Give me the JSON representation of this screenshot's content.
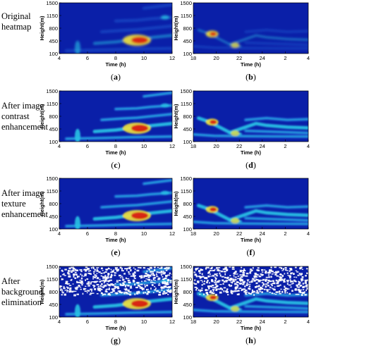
{
  "row_labels": [
    [
      "Original",
      "heatmap"
    ],
    [
      "After image",
      "contrast",
      "enhancement"
    ],
    [
      "After image",
      "texture",
      "enhancement"
    ],
    [
      "After",
      "background",
      "elimination"
    ]
  ],
  "chart_data": [
    {
      "type": "heatmap",
      "id": "a",
      "caption_letter": "a",
      "stage": "original",
      "xlabel": "Time (h)",
      "ylabel": "Height(m)",
      "xticks": [
        "4",
        "6",
        "8",
        "10",
        "12"
      ],
      "yticks": [
        "1500",
        "1150",
        "800",
        "450",
        "100"
      ],
      "xlim": [
        4,
        12
      ],
      "ylim": [
        100,
        1500
      ],
      "max_intensity_at": {
        "time": 10,
        "height": 450
      }
    },
    {
      "type": "heatmap",
      "id": "b",
      "caption_letter": "b",
      "stage": "original",
      "xlabel": "Time (h)",
      "ylabel": "Height(m)",
      "xticks": [
        "18",
        "20",
        "22",
        "24",
        "2",
        "4"
      ],
      "yticks": [
        "1500",
        "1150",
        "800",
        "450",
        "100"
      ],
      "xlim": [
        17,
        28
      ],
      "ylim": [
        100,
        1500
      ],
      "max_intensity_at": {
        "time": 19,
        "height": 650
      }
    },
    {
      "type": "heatmap",
      "id": "c",
      "caption_letter": "c",
      "stage": "contrast",
      "xlabel": "Time (h)",
      "ylabel": "Height(m)",
      "xticks": [
        "4",
        "6",
        "8",
        "10",
        "12"
      ],
      "yticks": [
        "1500",
        "1150",
        "800",
        "450",
        "100"
      ],
      "xlim": [
        4,
        12
      ],
      "ylim": [
        100,
        1500
      ]
    },
    {
      "type": "heatmap",
      "id": "d",
      "caption_letter": "d",
      "stage": "contrast",
      "xlabel": "Time (h)",
      "ylabel": "Height(m)",
      "xticks": [
        "18",
        "20",
        "22",
        "24",
        "2",
        "4"
      ],
      "yticks": [
        "1500",
        "1150",
        "800",
        "450",
        "100"
      ],
      "xlim": [
        17,
        28
      ],
      "ylim": [
        100,
        1500
      ]
    },
    {
      "type": "heatmap",
      "id": "e",
      "caption_letter": "e",
      "stage": "texture",
      "xlabel": "Time (h)",
      "ylabel": "Height(m)",
      "xticks": [
        "4",
        "6",
        "8",
        "10",
        "12"
      ],
      "yticks": [
        "1500",
        "1150",
        "800",
        "450",
        "100"
      ],
      "xlim": [
        4,
        12
      ],
      "ylim": [
        100,
        1500
      ]
    },
    {
      "type": "heatmap",
      "id": "f",
      "caption_letter": "f",
      "stage": "texture",
      "xlabel": "Time (h)",
      "ylabel": "Height(m)",
      "xticks": [
        "18",
        "20",
        "22",
        "24",
        "2",
        "4"
      ],
      "yticks": [
        "1500",
        "1150",
        "800",
        "450",
        "100"
      ],
      "xlim": [
        17,
        28
      ],
      "ylim": [
        100,
        1500
      ]
    },
    {
      "type": "heatmap",
      "id": "g",
      "caption_letter": "g",
      "stage": "background_eliminated",
      "xlabel": "Time (h)",
      "ylabel": "Height(m)",
      "xticks": [
        "4",
        "6",
        "8",
        "10",
        "12"
      ],
      "yticks": [
        "1500",
        "1150",
        "800",
        "450",
        "100"
      ],
      "xlim": [
        4,
        12
      ],
      "ylim": [
        100,
        1500
      ]
    },
    {
      "type": "heatmap",
      "id": "h",
      "caption_letter": "h",
      "stage": "background_eliminated",
      "xlabel": "Time (h)",
      "ylabel": "Height(m)",
      "xticks": [
        "18",
        "20",
        "22",
        "24",
        "2",
        "4"
      ],
      "yticks": [
        "1500",
        "1150",
        "800",
        "450",
        "100"
      ],
      "xlim": [
        17,
        28
      ],
      "ylim": [
        100,
        1500
      ]
    }
  ],
  "colors": {
    "background": "#0a1fa8",
    "cool": "#1f5fd6",
    "mid": "#29c4e6",
    "warm": "#f2e03a",
    "hot": "#d81c10"
  }
}
